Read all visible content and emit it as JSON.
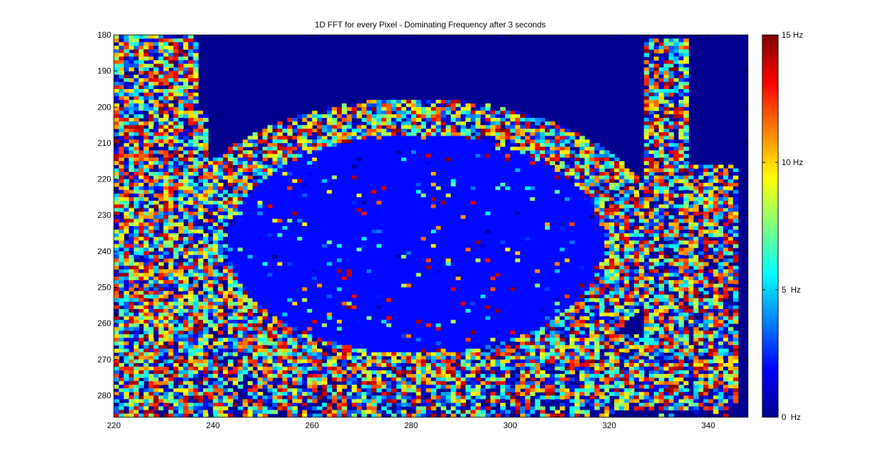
{
  "chart_data": {
    "type": "heatmap",
    "title": "1D FFT for every Pixel - Dominating Frequency after 3 seconds",
    "xlabel": "",
    "ylabel": "",
    "xlim": [
      220,
      348
    ],
    "ylim": [
      180,
      286
    ],
    "y_reversed": true,
    "x_ticks": [
      "220",
      "240",
      "260",
      "280",
      "300",
      "320",
      "340"
    ],
    "y_ticks": [
      "180",
      "190",
      "200",
      "210",
      "220",
      "230",
      "240",
      "250",
      "260",
      "270",
      "280"
    ],
    "colorbar": {
      "colormap": "jet",
      "range": [
        0,
        15
      ],
      "unit": "Hz",
      "tick_labels": [
        "0  Hz",
        "5  Hz",
        "10 Hz",
        "15 Hz"
      ],
      "tick_values": [
        0,
        5,
        10,
        15
      ]
    },
    "regions": {
      "background_value": 0,
      "center_disk_value": 2,
      "noisy_ring_value_range": [
        0,
        15
      ]
    },
    "colors": {
      "jet": [
        "#00008f",
        "#0000ff",
        "#0080ff",
        "#00ffff",
        "#80ff80",
        "#ffff00",
        "#ff8000",
        "#ff0000",
        "#800000"
      ],
      "background": "#00008f",
      "center_disk": "#0060ff",
      "axis": "#000000"
    }
  }
}
